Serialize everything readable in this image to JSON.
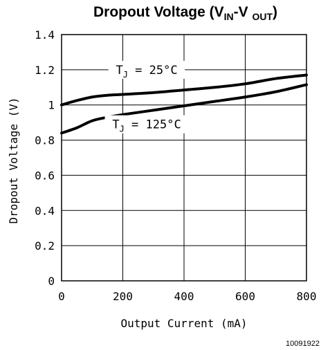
{
  "chart_data": {
    "type": "line",
    "title": "Dropout Voltage (V IN-V OUT)",
    "title_parts": {
      "main": "Dropout Voltage (V",
      "sub1": "IN",
      "mid": "-V ",
      "sub2": "OUT",
      "end": ")"
    },
    "xlabel": "Output Current (mA)",
    "ylabel": "Dropout Voltage (V)",
    "xlim": [
      0,
      800
    ],
    "ylim": [
      0,
      1.4
    ],
    "x_ticks": [
      0,
      200,
      400,
      600,
      800
    ],
    "x_tick_labels": [
      "0",
      "200",
      "400",
      "600",
      "800"
    ],
    "y_ticks": [
      0,
      0.2,
      0.4,
      0.6,
      0.8,
      1,
      1.2,
      1.4
    ],
    "y_tick_labels": [
      "0",
      "0.2",
      "0.4",
      "0.6",
      "0.8",
      "1",
      "1.2",
      "1.4"
    ],
    "grid": true,
    "series": [
      {
        "name": "TJ = 25°C",
        "x": [
          0,
          50,
          100,
          150,
          200,
          300,
          400,
          500,
          600,
          700,
          800
        ],
        "y": [
          1.0,
          1.025,
          1.045,
          1.055,
          1.06,
          1.07,
          1.085,
          1.1,
          1.12,
          1.15,
          1.17
        ]
      },
      {
        "name": "TJ = 125°C",
        "x": [
          0,
          50,
          100,
          150,
          200,
          300,
          400,
          500,
          600,
          700,
          800
        ],
        "y": [
          0.84,
          0.87,
          0.91,
          0.93,
          0.945,
          0.97,
          0.995,
          1.02,
          1.045,
          1.075,
          1.115
        ]
      }
    ],
    "annotations": [
      {
        "series": 0,
        "parts": {
          "pre": "T",
          "sub": "J",
          "post": " = 25°C"
        },
        "x": 278,
        "y": 1.2
      },
      {
        "series": 1,
        "parts": {
          "pre": "T",
          "sub": "J",
          "post": " = 125°C"
        },
        "x": 278,
        "y": 0.89
      }
    ],
    "figure_id": "10091922",
    "line_color": "#000000",
    "grid_color": "#000000"
  }
}
